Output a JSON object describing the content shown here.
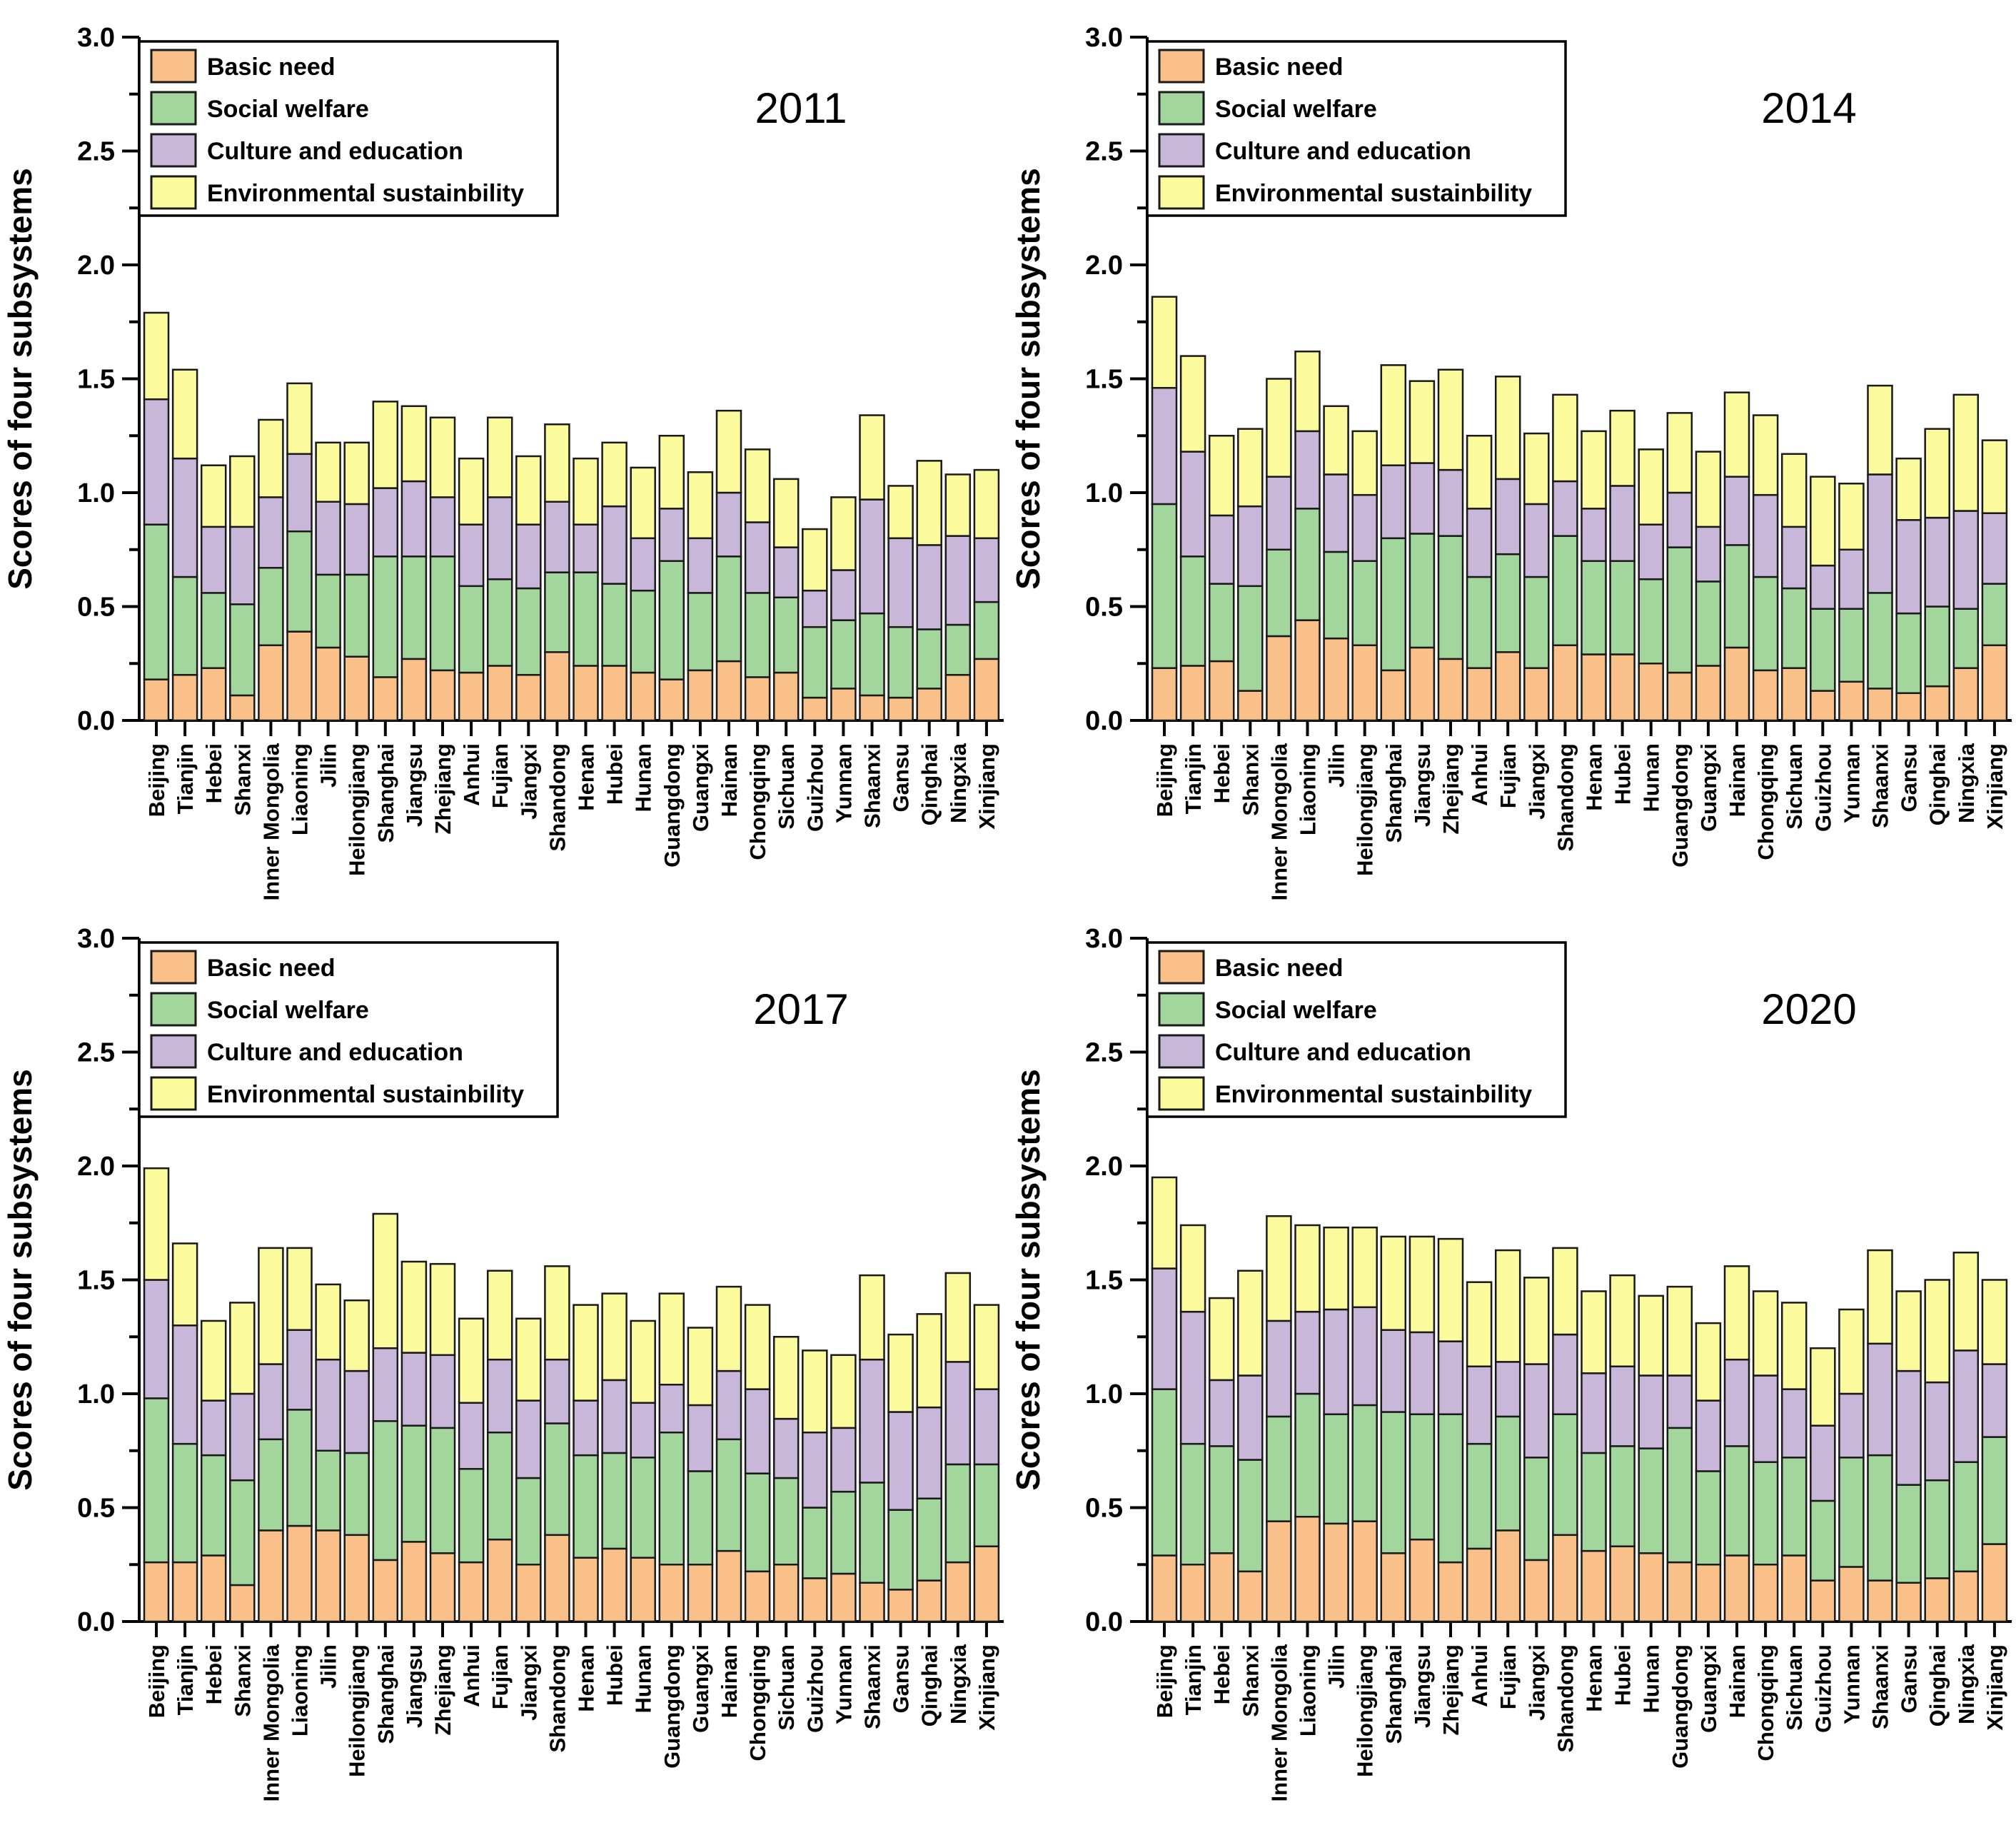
{
  "figure": {
    "background": "#ffffff"
  },
  "colors": {
    "basic_need": "#F9C189",
    "social_welfare": "#A2D69D",
    "culture_education": "#C8B7D9",
    "environmental": "#FBFA9D",
    "bar_stroke": "#1A1A1A",
    "axis": "#000000",
    "text": "#000000"
  },
  "legend": {
    "items": [
      {
        "key": "basic_need",
        "label": "Basic need"
      },
      {
        "key": "social_welfare",
        "label": "Social welfare"
      },
      {
        "key": "culture_education",
        "label": "Culture and education"
      },
      {
        "key": "environmental",
        "label": "Environmental sustainbility"
      }
    ]
  },
  "y_axis": {
    "title": "Scores of four subsystems",
    "min": 0.0,
    "max": 3.0,
    "major_tick": 0.5,
    "minor_tick": 0.25,
    "tick_labels": [
      "0.0",
      "0.5",
      "1.0",
      "1.5",
      "2.0",
      "2.5",
      "3.0"
    ]
  },
  "categories": [
    "Beijing",
    "Tianjin",
    "Hebei",
    "Shanxi",
    "Inner Mongolia",
    "Liaoning",
    "Jilin",
    "Heilongjiang",
    "Shanghai",
    "Jiangsu",
    "Zhejiang",
    "Anhui",
    "Fujian",
    "Jiangxi",
    "Shandong",
    "Henan",
    "Hubei",
    "Hunan",
    "Guangdong",
    "Guangxi",
    "Hainan",
    "Chongqing",
    "Sichuan",
    "Guizhou",
    "Yunnan",
    "Shaanxi",
    "Gansu",
    "Qinghai",
    "Ningxia",
    "Xinjiang"
  ],
  "chart_data": [
    {
      "type": "bar",
      "stacked": true,
      "title": "2011",
      "ylabel": "Scores of four subsystems",
      "ylim": [
        0,
        3
      ],
      "grid": false,
      "legend_position": "top-left",
      "categories": [
        "Beijing",
        "Tianjin",
        "Hebei",
        "Shanxi",
        "Inner Mongolia",
        "Liaoning",
        "Jilin",
        "Heilongjiang",
        "Shanghai",
        "Jiangsu",
        "Zhejiang",
        "Anhui",
        "Fujian",
        "Jiangxi",
        "Shandong",
        "Henan",
        "Hubei",
        "Hunan",
        "Guangdong",
        "Guangxi",
        "Hainan",
        "Chongqing",
        "Sichuan",
        "Guizhou",
        "Yunnan",
        "Shaanxi",
        "Gansu",
        "Qinghai",
        "Ningxia",
        "Xinjiang"
      ],
      "series": [
        {
          "name": "Basic need",
          "key": "basic_need",
          "values": [
            0.18,
            0.2,
            0.23,
            0.11,
            0.33,
            0.39,
            0.32,
            0.28,
            0.19,
            0.27,
            0.22,
            0.21,
            0.24,
            0.2,
            0.3,
            0.24,
            0.24,
            0.21,
            0.18,
            0.22,
            0.26,
            0.19,
            0.21,
            0.1,
            0.14,
            0.11,
            0.1,
            0.14,
            0.2,
            0.27
          ]
        },
        {
          "name": "Social welfare",
          "key": "social_welfare",
          "values": [
            0.68,
            0.43,
            0.33,
            0.4,
            0.34,
            0.44,
            0.32,
            0.36,
            0.53,
            0.45,
            0.5,
            0.38,
            0.38,
            0.38,
            0.35,
            0.41,
            0.36,
            0.36,
            0.52,
            0.34,
            0.46,
            0.37,
            0.33,
            0.31,
            0.3,
            0.36,
            0.31,
            0.26,
            0.22,
            0.25
          ]
        },
        {
          "name": "Culture and education",
          "key": "culture_education",
          "values": [
            0.55,
            0.52,
            0.29,
            0.34,
            0.31,
            0.34,
            0.32,
            0.31,
            0.3,
            0.33,
            0.26,
            0.27,
            0.36,
            0.28,
            0.31,
            0.21,
            0.34,
            0.23,
            0.23,
            0.24,
            0.28,
            0.31,
            0.22,
            0.16,
            0.22,
            0.5,
            0.39,
            0.37,
            0.39,
            0.28
          ]
        },
        {
          "name": "Environmental sustainbility",
          "key": "environmental",
          "values": [
            0.38,
            0.39,
            0.27,
            0.31,
            0.34,
            0.31,
            0.26,
            0.27,
            0.38,
            0.33,
            0.35,
            0.29,
            0.35,
            0.3,
            0.34,
            0.29,
            0.28,
            0.31,
            0.32,
            0.29,
            0.36,
            0.32,
            0.3,
            0.27,
            0.32,
            0.37,
            0.23,
            0.37,
            0.27,
            0.3
          ]
        }
      ]
    },
    {
      "type": "bar",
      "stacked": true,
      "title": "2014",
      "ylabel": "Scores of four subsystems",
      "ylim": [
        0,
        3
      ],
      "grid": false,
      "legend_position": "top-left",
      "categories": [
        "Beijing",
        "Tianjin",
        "Hebei",
        "Shanxi",
        "Inner Mongolia",
        "Liaoning",
        "Jilin",
        "Heilongjiang",
        "Shanghai",
        "Jiangsu",
        "Zhejiang",
        "Anhui",
        "Fujian",
        "Jiangxi",
        "Shandong",
        "Henan",
        "Hubei",
        "Hunan",
        "Guangdong",
        "Guangxi",
        "Hainan",
        "Chongqing",
        "Sichuan",
        "Guizhou",
        "Yunnan",
        "Shaanxi",
        "Gansu",
        "Qinghai",
        "Ningxia",
        "Xinjiang"
      ],
      "series": [
        {
          "name": "Basic need",
          "key": "basic_need",
          "values": [
            0.23,
            0.24,
            0.26,
            0.13,
            0.37,
            0.44,
            0.36,
            0.33,
            0.22,
            0.32,
            0.27,
            0.23,
            0.3,
            0.23,
            0.33,
            0.29,
            0.29,
            0.25,
            0.21,
            0.24,
            0.32,
            0.22,
            0.23,
            0.13,
            0.17,
            0.14,
            0.12,
            0.15,
            0.23,
            0.33
          ]
        },
        {
          "name": "Social welfare",
          "key": "social_welfare",
          "values": [
            0.72,
            0.48,
            0.34,
            0.46,
            0.38,
            0.49,
            0.38,
            0.37,
            0.58,
            0.5,
            0.54,
            0.4,
            0.43,
            0.4,
            0.48,
            0.41,
            0.41,
            0.37,
            0.55,
            0.37,
            0.45,
            0.41,
            0.35,
            0.36,
            0.32,
            0.42,
            0.35,
            0.35,
            0.26,
            0.27
          ]
        },
        {
          "name": "Culture and education",
          "key": "culture_education",
          "values": [
            0.51,
            0.46,
            0.3,
            0.35,
            0.32,
            0.34,
            0.34,
            0.29,
            0.32,
            0.31,
            0.29,
            0.3,
            0.33,
            0.32,
            0.24,
            0.23,
            0.33,
            0.24,
            0.24,
            0.24,
            0.3,
            0.36,
            0.27,
            0.19,
            0.26,
            0.52,
            0.41,
            0.39,
            0.43,
            0.31
          ]
        },
        {
          "name": "Environmental sustainbility",
          "key": "environmental",
          "values": [
            0.4,
            0.42,
            0.35,
            0.34,
            0.43,
            0.35,
            0.3,
            0.28,
            0.44,
            0.36,
            0.44,
            0.32,
            0.45,
            0.31,
            0.38,
            0.34,
            0.33,
            0.33,
            0.35,
            0.33,
            0.37,
            0.35,
            0.32,
            0.39,
            0.29,
            0.39,
            0.27,
            0.39,
            0.51,
            0.32
          ]
        }
      ]
    },
    {
      "type": "bar",
      "stacked": true,
      "title": "2017",
      "ylabel": "Scores of four subsystems",
      "ylim": [
        0,
        3
      ],
      "grid": false,
      "legend_position": "top-left",
      "categories": [
        "Beijing",
        "Tianjin",
        "Hebei",
        "Shanxi",
        "Inner Mongolia",
        "Liaoning",
        "Jilin",
        "Heilongjiang",
        "Shanghai",
        "Jiangsu",
        "Zhejiang",
        "Anhui",
        "Fujian",
        "Jiangxi",
        "Shandong",
        "Henan",
        "Hubei",
        "Hunan",
        "Guangdong",
        "Guangxi",
        "Hainan",
        "Chongqing",
        "Sichuan",
        "Guizhou",
        "Yunnan",
        "Shaanxi",
        "Gansu",
        "Qinghai",
        "Ningxia",
        "Xinjiang"
      ],
      "series": [
        {
          "name": "Basic need",
          "key": "basic_need",
          "values": [
            0.26,
            0.26,
            0.29,
            0.16,
            0.4,
            0.42,
            0.4,
            0.38,
            0.27,
            0.35,
            0.3,
            0.26,
            0.36,
            0.25,
            0.38,
            0.28,
            0.32,
            0.28,
            0.25,
            0.25,
            0.31,
            0.22,
            0.25,
            0.19,
            0.21,
            0.17,
            0.14,
            0.18,
            0.26,
            0.33
          ]
        },
        {
          "name": "Social welfare",
          "key": "social_welfare",
          "values": [
            0.72,
            0.52,
            0.44,
            0.46,
            0.4,
            0.51,
            0.35,
            0.36,
            0.61,
            0.51,
            0.55,
            0.41,
            0.47,
            0.38,
            0.49,
            0.45,
            0.42,
            0.44,
            0.58,
            0.41,
            0.49,
            0.43,
            0.38,
            0.31,
            0.36,
            0.44,
            0.35,
            0.36,
            0.43,
            0.36
          ]
        },
        {
          "name": "Culture and education",
          "key": "culture_education",
          "values": [
            0.52,
            0.52,
            0.24,
            0.38,
            0.33,
            0.35,
            0.4,
            0.36,
            0.32,
            0.32,
            0.32,
            0.29,
            0.32,
            0.34,
            0.28,
            0.24,
            0.32,
            0.24,
            0.21,
            0.29,
            0.3,
            0.37,
            0.26,
            0.33,
            0.28,
            0.54,
            0.43,
            0.4,
            0.45,
            0.33
          ]
        },
        {
          "name": "Environmental sustainbility",
          "key": "environmental",
          "values": [
            0.49,
            0.36,
            0.35,
            0.4,
            0.51,
            0.36,
            0.33,
            0.31,
            0.59,
            0.4,
            0.4,
            0.37,
            0.39,
            0.36,
            0.41,
            0.42,
            0.38,
            0.36,
            0.4,
            0.34,
            0.37,
            0.37,
            0.36,
            0.36,
            0.32,
            0.37,
            0.34,
            0.41,
            0.39,
            0.37
          ]
        }
      ]
    },
    {
      "type": "bar",
      "stacked": true,
      "title": "2020",
      "ylabel": "Scores of four subsystems",
      "ylim": [
        0,
        3
      ],
      "grid": false,
      "legend_position": "top-left",
      "categories": [
        "Beijing",
        "Tianjin",
        "Hebei",
        "Shanxi",
        "Inner Mongolia",
        "Liaoning",
        "Jilin",
        "Heilongjiang",
        "Shanghai",
        "Jiangsu",
        "Zhejiang",
        "Anhui",
        "Fujian",
        "Jiangxi",
        "Shandong",
        "Henan",
        "Hubei",
        "Hunan",
        "Guangdong",
        "Guangxi",
        "Hainan",
        "Chongqing",
        "Sichuan",
        "Guizhou",
        "Yunnan",
        "Shaanxi",
        "Gansu",
        "Qinghai",
        "Ningxia",
        "Xinjiang"
      ],
      "series": [
        {
          "name": "Basic need",
          "key": "basic_need",
          "values": [
            0.29,
            0.25,
            0.3,
            0.22,
            0.44,
            0.46,
            0.43,
            0.44,
            0.3,
            0.36,
            0.26,
            0.32,
            0.4,
            0.27,
            0.38,
            0.31,
            0.33,
            0.3,
            0.26,
            0.25,
            0.29,
            0.25,
            0.29,
            0.18,
            0.24,
            0.18,
            0.17,
            0.19,
            0.22,
            0.34
          ]
        },
        {
          "name": "Social welfare",
          "key": "social_welfare",
          "values": [
            0.73,
            0.53,
            0.47,
            0.49,
            0.46,
            0.54,
            0.48,
            0.51,
            0.62,
            0.55,
            0.65,
            0.46,
            0.5,
            0.45,
            0.53,
            0.43,
            0.44,
            0.46,
            0.59,
            0.41,
            0.48,
            0.45,
            0.43,
            0.35,
            0.48,
            0.55,
            0.43,
            0.43,
            0.48,
            0.47
          ]
        },
        {
          "name": "Culture and education",
          "key": "culture_education",
          "values": [
            0.53,
            0.58,
            0.29,
            0.37,
            0.42,
            0.36,
            0.46,
            0.43,
            0.36,
            0.36,
            0.32,
            0.34,
            0.24,
            0.41,
            0.35,
            0.35,
            0.35,
            0.32,
            0.23,
            0.31,
            0.38,
            0.38,
            0.3,
            0.33,
            0.28,
            0.49,
            0.5,
            0.43,
            0.49,
            0.32
          ]
        },
        {
          "name": "Environmental sustainbility",
          "key": "environmental",
          "values": [
            0.4,
            0.38,
            0.36,
            0.46,
            0.46,
            0.38,
            0.36,
            0.35,
            0.41,
            0.42,
            0.45,
            0.37,
            0.49,
            0.38,
            0.38,
            0.36,
            0.4,
            0.35,
            0.39,
            0.34,
            0.41,
            0.37,
            0.38,
            0.34,
            0.37,
            0.41,
            0.35,
            0.45,
            0.43,
            0.37
          ]
        }
      ]
    }
  ]
}
